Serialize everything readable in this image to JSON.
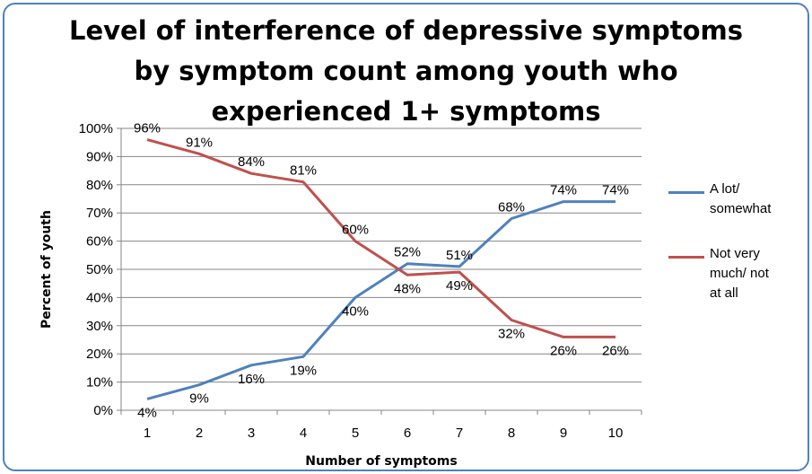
{
  "chart_data": {
    "type": "line",
    "title_lines": [
      "Level of interference of depressive symptoms",
      "by symptom count among youth who",
      "experienced 1+ symptoms"
    ],
    "xlabel": "Number of symptoms",
    "ylabel": "Percent of youth",
    "categories": [
      "1",
      "2",
      "3",
      "4",
      "5",
      "6",
      "7",
      "8",
      "9",
      "10"
    ],
    "yticks": [
      "0%",
      "10%",
      "20%",
      "30%",
      "40%",
      "50%",
      "60%",
      "70%",
      "80%",
      "90%",
      "100%"
    ],
    "ylim": [
      0,
      100
    ],
    "grid": true,
    "legend_position": "right",
    "series": [
      {
        "name": "A lot/ somewhat",
        "legend_lines": [
          "A lot/",
          "somewhat"
        ],
        "color": "#4F81BD",
        "values": [
          4,
          9,
          16,
          19,
          40,
          52,
          51,
          68,
          74,
          74
        ],
        "labels": [
          "4%",
          "9%",
          "16%",
          "19%",
          "40%",
          "52%",
          "51%",
          "68%",
          "74%",
          "74%"
        ]
      },
      {
        "name": "Not very much/ not at all",
        "legend_lines": [
          "Not very",
          "much/ not",
          "at all"
        ],
        "color": "#C0504D",
        "values": [
          96,
          91,
          84,
          81,
          60,
          48,
          49,
          32,
          26,
          26
        ],
        "labels": [
          "96%",
          "91%",
          "84%",
          "81%",
          "60%",
          "48%",
          "49%",
          "32%",
          "26%",
          "26%"
        ]
      }
    ]
  }
}
